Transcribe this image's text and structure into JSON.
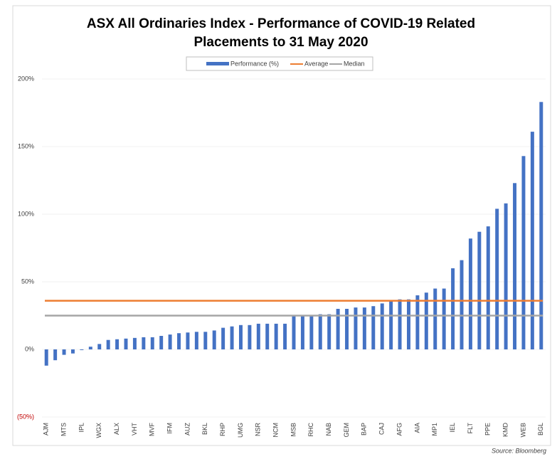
{
  "chart_data": {
    "type": "bar",
    "title": "ASX All Ordinaries Index - Performance of COVID-19 Related",
    "subtitle": "Placements to 31 May 2020",
    "source": "Source: Bloomberg",
    "categories": [
      "AJM",
      null,
      "MTS",
      null,
      "IPL",
      null,
      "WGX",
      null,
      "ALX",
      null,
      "VHT",
      null,
      "MVF",
      null,
      "IFM",
      null,
      "AUZ",
      null,
      "BKL",
      null,
      "RHP",
      null,
      "UMG",
      null,
      "NSR",
      null,
      "NCM",
      null,
      "MSB",
      null,
      "RHC",
      null,
      "NAB",
      null,
      "GEM",
      null,
      "BAP",
      null,
      "CAJ",
      null,
      "AFG",
      null,
      "AIA",
      null,
      "MP1",
      null,
      "IEL",
      null,
      "FLT",
      null,
      "PPE",
      null,
      "KMD",
      null,
      "WEB",
      null,
      "BGL"
    ],
    "series": [
      {
        "name": "Performance (%)",
        "color": "#4472c4",
        "values": [
          -12,
          -8,
          -4,
          -3,
          -0.5,
          2,
          4,
          7,
          7.5,
          8,
          8.5,
          9,
          9,
          10,
          11,
          12,
          12.5,
          13,
          13,
          14,
          16,
          17,
          18,
          18,
          19,
          19,
          19,
          19,
          25,
          25,
          25,
          26,
          26,
          30,
          30,
          31,
          31,
          32,
          34,
          36,
          37,
          37,
          40,
          42,
          45,
          45,
          60,
          66,
          82,
          87,
          91,
          104,
          108,
          123,
          143,
          161,
          183
        ]
      }
    ],
    "reference_lines": [
      {
        "name": "Average",
        "color": "#ed7d31",
        "value": 36
      },
      {
        "name": "Median",
        "color": "#a5a5a5",
        "value": 25
      }
    ],
    "ylim": [
      -50,
      200
    ],
    "yticks": [
      {
        "value": -50,
        "label": "(50%)"
      },
      {
        "value": 0,
        "label": "0%"
      },
      {
        "value": 50,
        "label": "50%"
      },
      {
        "value": 100,
        "label": "100%"
      },
      {
        "value": 150,
        "label": "150%"
      },
      {
        "value": 200,
        "label": "200%"
      }
    ],
    "negative_tick_color": "#c00000",
    "grid": true
  }
}
